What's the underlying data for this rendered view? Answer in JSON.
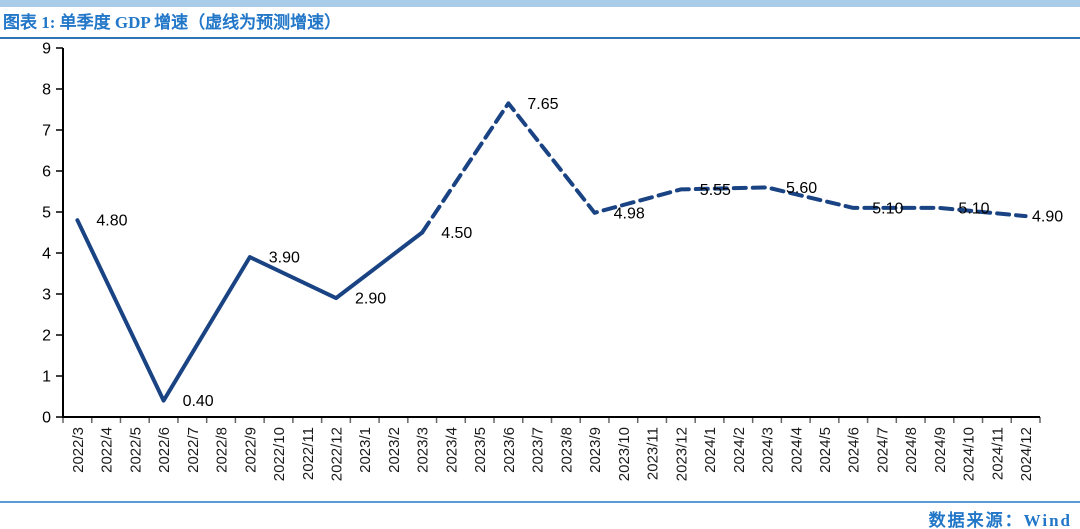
{
  "header": {
    "title": "图表 1: 单季度 GDP 增速（虚线为预测增速）"
  },
  "footer": {
    "source": "数据来源：Wind"
  },
  "colors": {
    "accent_bar": "#a9cde9",
    "title_text": "#2277c8",
    "title_rule": "#2e75b6",
    "footer_rule": "#5b9bd5",
    "series_line": "#1a4383",
    "data_label": "#000000",
    "axis_line": "#000000",
    "x_tick": "#666666",
    "tick_label": "#1a1a1a"
  },
  "chart_data": {
    "type": "line",
    "title": "单季度 GDP 增速",
    "note": "虚线为预测增速",
    "grid": false,
    "legend": false,
    "x_axis": {
      "tick_label_rotation": -90,
      "categories": [
        "2022/3",
        "2022/4",
        "2022/5",
        "2022/6",
        "2022/7",
        "2022/8",
        "2022/9",
        "2022/10",
        "2022/11",
        "2022/12",
        "2023/1",
        "2023/2",
        "2023/3",
        "2023/4",
        "2023/5",
        "2023/6",
        "2023/7",
        "2023/8",
        "2023/9",
        "2023/10",
        "2023/11",
        "2023/12",
        "2024/1",
        "2024/2",
        "2024/3",
        "2024/4",
        "2024/5",
        "2024/6",
        "2024/7",
        "2024/8",
        "2024/9",
        "2024/10",
        "2024/11",
        "2024/12"
      ]
    },
    "y_axis": {
      "min": 0,
      "max": 9,
      "tick_interval": 1,
      "ticks": [
        0,
        1,
        2,
        3,
        4,
        5,
        6,
        7,
        8,
        9
      ]
    },
    "series": [
      {
        "name": "单季度GDP增速",
        "line_style": "solid",
        "line_color": "#1a4383",
        "points": [
          {
            "category": "2022/3",
            "value": 4.8,
            "label": "4.80"
          },
          {
            "category": "2022/6",
            "value": 0.4,
            "label": "0.40"
          },
          {
            "category": "2022/9",
            "value": 3.9,
            "label": "3.90"
          },
          {
            "category": "2022/12",
            "value": 2.9,
            "label": "2.90"
          },
          {
            "category": "2023/3",
            "value": 4.5,
            "label": "4.50"
          }
        ]
      },
      {
        "name": "预测增速",
        "line_style": "dashed",
        "line_color": "#1a4383",
        "points": [
          {
            "category": "2023/3",
            "value": 4.5,
            "label": null
          },
          {
            "category": "2023/6",
            "value": 7.65,
            "label": "7.65"
          },
          {
            "category": "2023/9",
            "value": 4.98,
            "label": "4.98"
          },
          {
            "category": "2023/12",
            "value": 5.55,
            "label": "5.55"
          },
          {
            "category": "2024/3",
            "value": 5.6,
            "label": "5.60"
          },
          {
            "category": "2024/6",
            "value": 5.1,
            "label": "5.10"
          },
          {
            "category": "2024/9",
            "value": 5.1,
            "label": "5.10"
          },
          {
            "category": "2024/12",
            "value": 4.9,
            "label": "4.90"
          }
        ]
      }
    ]
  }
}
